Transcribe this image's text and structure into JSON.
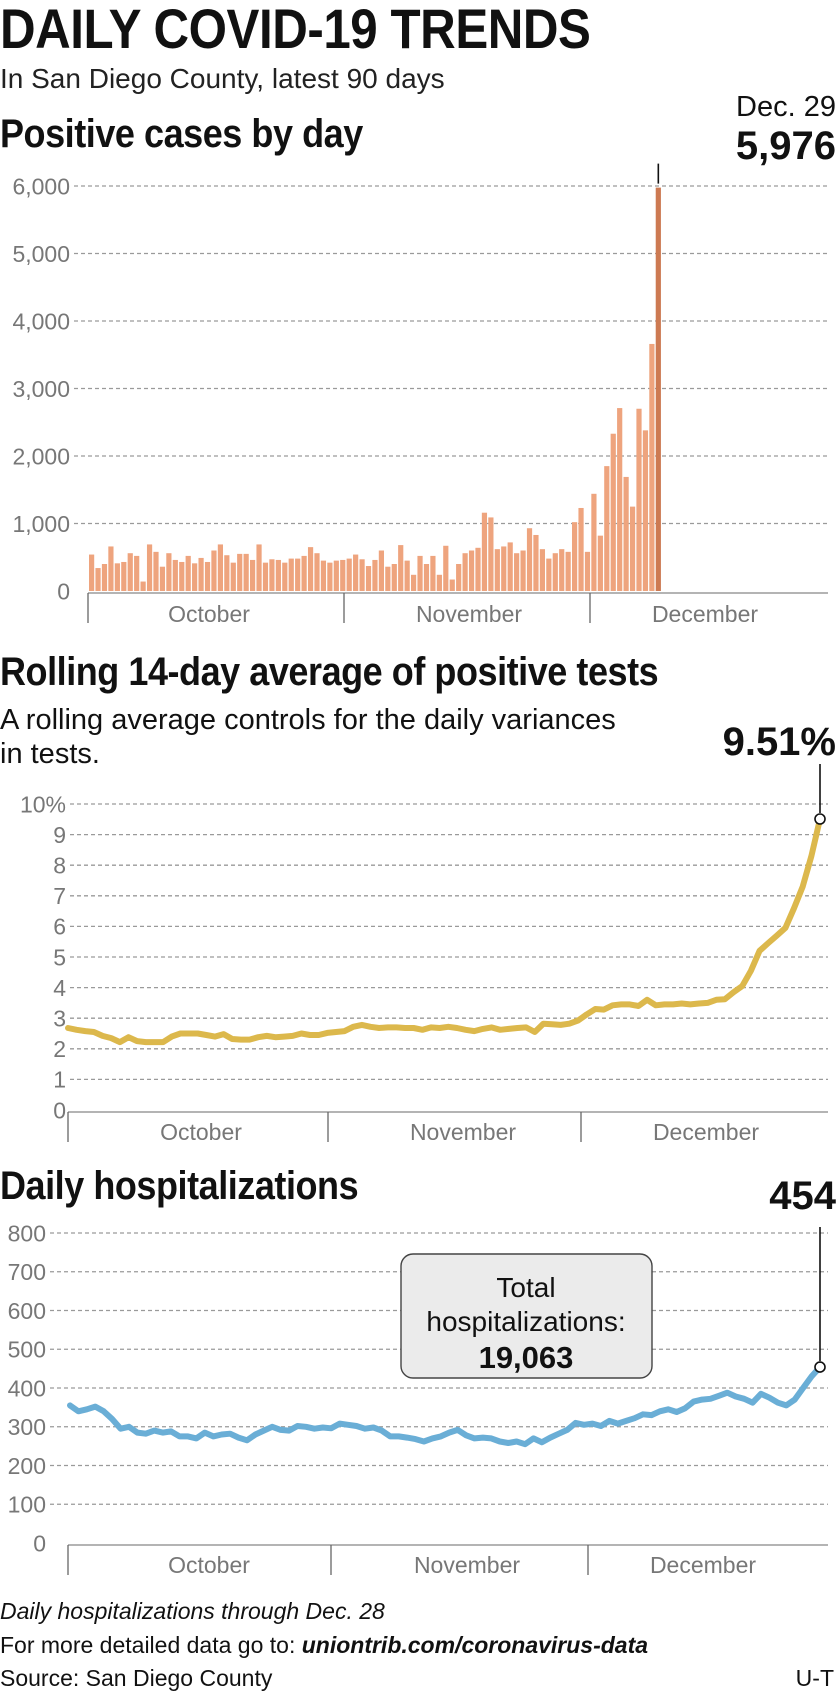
{
  "header": {
    "title": "DAILY COVID-19 TRENDS",
    "subtitle": "In San Diego County, latest 90 days"
  },
  "sections": {
    "cases_title": "Positive cases by day",
    "rate_title": "Rolling 14-day average of positive tests",
    "rate_subtitle_line1": "A rolling average controls for the daily variances",
    "rate_subtitle_line2": "in tests.",
    "hosp_title": "Daily hospitalizations"
  },
  "colors": {
    "cases_bar": "#eea47e",
    "cases_bar_latest": "#cd7a52",
    "rate_line": "#dcb84c",
    "hosp_line": "#6aaed6",
    "grid": "#9a9a9a"
  },
  "chart_data": [
    {
      "type": "bar",
      "title": "Positive cases by day",
      "ylim": [
        0,
        6000
      ],
      "y_ticks": [
        "0",
        "1,000",
        "2,000",
        "3,000",
        "4,000",
        "5,000",
        "6,000"
      ],
      "month_labels": [
        "October",
        "November",
        "December"
      ],
      "values": [
        540,
        340,
        400,
        660,
        410,
        430,
        560,
        520,
        140,
        690,
        580,
        360,
        560,
        460,
        430,
        520,
        410,
        490,
        430,
        600,
        690,
        530,
        420,
        550,
        550,
        460,
        690,
        420,
        470,
        460,
        420,
        480,
        480,
        520,
        650,
        560,
        450,
        420,
        450,
        460,
        480,
        540,
        470,
        370,
        460,
        600,
        360,
        400,
        680,
        450,
        240,
        520,
        400,
        520,
        240,
        670,
        170,
        400,
        560,
        600,
        640,
        1160,
        1090,
        620,
        660,
        720,
        560,
        600,
        930,
        830,
        620,
        480,
        560,
        620,
        580,
        1020,
        1230,
        580,
        1440,
        820,
        1850,
        2330,
        2710,
        1690,
        1250,
        2700,
        2380,
        3660,
        5976
      ],
      "annotation": {
        "date": "Dec. 29",
        "value": "5,976"
      }
    },
    {
      "type": "line",
      "title": "Rolling 14-day average of positive tests",
      "ylim": [
        0,
        10
      ],
      "y_ticks": [
        "0",
        "1",
        "2",
        "3",
        "4",
        "5",
        "6",
        "7",
        "8",
        "9",
        "10%"
      ],
      "month_labels": [
        "October",
        "November",
        "December"
      ],
      "values": [
        2.68,
        2.62,
        2.58,
        2.55,
        2.42,
        2.35,
        2.22,
        2.38,
        2.25,
        2.22,
        2.22,
        2.22,
        2.4,
        2.5,
        2.5,
        2.5,
        2.45,
        2.4,
        2.48,
        2.32,
        2.3,
        2.3,
        2.38,
        2.42,
        2.38,
        2.4,
        2.42,
        2.5,
        2.45,
        2.45,
        2.52,
        2.55,
        2.58,
        2.72,
        2.78,
        2.72,
        2.68,
        2.7,
        2.7,
        2.68,
        2.68,
        2.62,
        2.7,
        2.68,
        2.72,
        2.68,
        2.62,
        2.58,
        2.65,
        2.7,
        2.62,
        2.65,
        2.68,
        2.7,
        2.55,
        2.82,
        2.8,
        2.78,
        2.82,
        2.92,
        3.12,
        3.3,
        3.28,
        3.42,
        3.45,
        3.45,
        3.4,
        3.6,
        3.42,
        3.45,
        3.45,
        3.48,
        3.45,
        3.48,
        3.5,
        3.6,
        3.62,
        3.85,
        4.05,
        4.55,
        5.2,
        5.45,
        5.7,
        5.95,
        6.6,
        7.3,
        8.3,
        9.51
      ],
      "annotation": {
        "value": "9.51%"
      }
    },
    {
      "type": "line",
      "title": "Daily hospitalizations",
      "ylim": [
        0,
        800
      ],
      "y_ticks": [
        "0",
        "100",
        "200",
        "300",
        "400",
        "500",
        "600",
        "700",
        "800"
      ],
      "month_labels": [
        "October",
        "November",
        "December"
      ],
      "values": [
        355,
        340,
        345,
        352,
        340,
        320,
        295,
        300,
        285,
        282,
        290,
        285,
        288,
        275,
        275,
        270,
        285,
        275,
        280,
        282,
        272,
        265,
        280,
        290,
        300,
        292,
        290,
        302,
        300,
        295,
        298,
        296,
        308,
        305,
        302,
        295,
        298,
        290,
        275,
        275,
        272,
        268,
        262,
        270,
        275,
        285,
        292,
        278,
        270,
        272,
        270,
        262,
        258,
        262,
        255,
        270,
        260,
        272,
        282,
        292,
        310,
        305,
        308,
        302,
        315,
        308,
        315,
        322,
        332,
        330,
        340,
        345,
        338,
        348,
        365,
        370,
        372,
        380,
        388,
        378,
        372,
        362,
        385,
        375,
        362,
        355,
        370,
        400,
        430,
        454
      ],
      "annotation": {
        "value": "454"
      },
      "callout": {
        "label_line1": "Total",
        "label_line2": "hospitalizations:",
        "value": "19,063"
      }
    }
  ],
  "footer": {
    "note": "Daily hospitalizations through Dec. 28",
    "more_prefix": "For more detailed data go to: ",
    "more_link": "uniontrib.com/coronavirus-data",
    "source": "Source: San Diego County",
    "credit": "U-T"
  }
}
